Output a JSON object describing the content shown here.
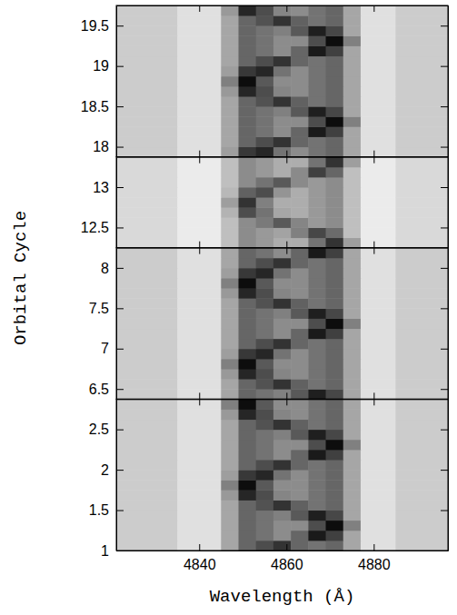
{
  "chart_data": {
    "type": "heatmap",
    "xlabel": "Wavelength (Å)",
    "ylabel": "Orbital Cycle",
    "xlim": [
      4821,
      4897
    ],
    "xticks": [
      4840,
      4860,
      4880
    ],
    "zlim": [
      0,
      100
    ],
    "x_edges": [
      4821,
      4835,
      4845,
      4849,
      4853,
      4857,
      4861,
      4865,
      4869,
      4873,
      4877,
      4885,
      4897
    ],
    "panels": [
      {
        "ylim": [
          17.875,
          19.75
        ],
        "yticks": [
          18,
          18.5,
          19,
          19.5
        ],
        "y_edges": [
          17.875,
          18,
          18.125,
          18.25,
          18.375,
          18.5,
          18.625,
          18.75,
          18.875,
          19,
          19.125,
          19.25,
          19.375,
          19.5,
          19.625,
          19.75
        ],
        "cells": [
          [
            20,
            12,
            38,
            78,
            85,
            55,
            45,
            55,
            60,
            35,
            12,
            20
          ],
          [
            20,
            12,
            35,
            60,
            70,
            80,
            60,
            55,
            60,
            35,
            12,
            20
          ],
          [
            20,
            12,
            35,
            60,
            55,
            45,
            60,
            90,
            75,
            35,
            12,
            20
          ],
          [
            20,
            12,
            35,
            60,
            55,
            45,
            45,
            70,
            95,
            50,
            12,
            20
          ],
          [
            20,
            12,
            35,
            60,
            55,
            50,
            65,
            88,
            72,
            35,
            12,
            20
          ],
          [
            20,
            12,
            35,
            60,
            68,
            80,
            62,
            55,
            60,
            35,
            12,
            20
          ],
          [
            20,
            12,
            40,
            85,
            70,
            48,
            45,
            55,
            60,
            35,
            12,
            20
          ],
          [
            20,
            12,
            50,
            95,
            65,
            45,
            45,
            55,
            60,
            35,
            12,
            20
          ],
          [
            20,
            12,
            38,
            78,
            85,
            55,
            45,
            55,
            60,
            35,
            12,
            20
          ],
          [
            20,
            12,
            35,
            60,
            70,
            80,
            60,
            55,
            60,
            35,
            12,
            20
          ],
          [
            20,
            12,
            35,
            60,
            55,
            45,
            60,
            90,
            75,
            35,
            12,
            20
          ],
          [
            20,
            12,
            35,
            60,
            55,
            45,
            45,
            70,
            95,
            50,
            12,
            20
          ],
          [
            20,
            12,
            35,
            60,
            55,
            50,
            65,
            88,
            72,
            35,
            12,
            20
          ],
          [
            20,
            12,
            35,
            60,
            68,
            80,
            62,
            55,
            60,
            35,
            12,
            20
          ],
          [
            20,
            12,
            40,
            85,
            70,
            48,
            45,
            55,
            60,
            35,
            12,
            20
          ]
        ]
      },
      {
        "ylim": [
          12.25,
          13.375
        ],
        "yticks": [
          12.5,
          13
        ],
        "y_edges": [
          12.25,
          12.375,
          12.5,
          12.625,
          12.75,
          12.875,
          13,
          13.125,
          13.25,
          13.375
        ],
        "cells": [
          [
            15,
            8,
            25,
            45,
            40,
            32,
            32,
            55,
            80,
            38,
            8,
            15
          ],
          [
            15,
            8,
            25,
            45,
            40,
            36,
            50,
            72,
            58,
            25,
            8,
            15
          ],
          [
            15,
            8,
            25,
            45,
            52,
            65,
            48,
            40,
            45,
            25,
            8,
            15
          ],
          [
            15,
            8,
            30,
            70,
            55,
            35,
            32,
            40,
            45,
            25,
            8,
            15
          ],
          [
            15,
            8,
            38,
            80,
            50,
            32,
            32,
            40,
            45,
            25,
            8,
            15
          ],
          [
            15,
            8,
            28,
            62,
            70,
            42,
            32,
            40,
            45,
            25,
            8,
            15
          ],
          [
            15,
            8,
            25,
            45,
            55,
            65,
            46,
            40,
            45,
            25,
            8,
            15
          ],
          [
            15,
            8,
            25,
            45,
            40,
            32,
            46,
            75,
            60,
            25,
            8,
            15
          ],
          [
            15,
            8,
            25,
            45,
            40,
            32,
            32,
            55,
            80,
            38,
            8,
            15
          ]
        ]
      },
      {
        "ylim": [
          6.375,
          8.25
        ],
        "yticks": [
          6.5,
          7,
          7.5,
          8
        ],
        "y_edges": [
          6.375,
          6.5,
          6.625,
          6.75,
          6.875,
          7,
          7.125,
          7.25,
          7.375,
          7.5,
          7.625,
          7.75,
          7.875,
          8,
          8.125,
          8.25
        ],
        "cells": [
          [
            20,
            12,
            35,
            60,
            55,
            50,
            65,
            88,
            72,
            35,
            12,
            20
          ],
          [
            20,
            12,
            35,
            60,
            68,
            80,
            62,
            55,
            60,
            35,
            12,
            20
          ],
          [
            20,
            12,
            40,
            85,
            70,
            48,
            45,
            55,
            60,
            35,
            12,
            20
          ],
          [
            20,
            12,
            50,
            95,
            65,
            45,
            45,
            55,
            60,
            35,
            12,
            20
          ],
          [
            20,
            12,
            38,
            78,
            85,
            55,
            45,
            55,
            60,
            35,
            12,
            20
          ],
          [
            20,
            12,
            35,
            60,
            70,
            80,
            60,
            55,
            60,
            35,
            12,
            20
          ],
          [
            20,
            12,
            35,
            60,
            55,
            45,
            60,
            90,
            75,
            35,
            12,
            20
          ],
          [
            20,
            12,
            35,
            60,
            55,
            45,
            45,
            70,
            95,
            50,
            12,
            20
          ],
          [
            20,
            12,
            35,
            60,
            55,
            50,
            65,
            88,
            72,
            35,
            12,
            20
          ],
          [
            20,
            12,
            35,
            60,
            68,
            80,
            62,
            55,
            60,
            35,
            12,
            20
          ],
          [
            20,
            12,
            40,
            85,
            70,
            48,
            45,
            55,
            60,
            35,
            12,
            20
          ],
          [
            20,
            12,
            50,
            95,
            65,
            45,
            45,
            55,
            60,
            35,
            12,
            20
          ],
          [
            20,
            12,
            38,
            78,
            85,
            55,
            45,
            55,
            60,
            35,
            12,
            20
          ],
          [
            20,
            12,
            35,
            60,
            70,
            80,
            60,
            55,
            60,
            35,
            12,
            20
          ],
          [
            20,
            12,
            35,
            60,
            55,
            45,
            60,
            90,
            75,
            35,
            12,
            20
          ]
        ]
      },
      {
        "ylim": [
          1,
          2.875
        ],
        "yticks": [
          1,
          1.5,
          2,
          2.5
        ],
        "y_edges": [
          1,
          1.125,
          1.25,
          1.375,
          1.5,
          1.625,
          1.75,
          1.875,
          2,
          2.125,
          2.25,
          2.375,
          2.5,
          2.625,
          2.75,
          2.875
        ],
        "cells": [
          [
            20,
            12,
            35,
            60,
            70,
            80,
            60,
            55,
            60,
            35,
            12,
            20
          ],
          [
            20,
            12,
            35,
            60,
            55,
            45,
            60,
            90,
            75,
            35,
            12,
            20
          ],
          [
            20,
            12,
            35,
            60,
            55,
            45,
            45,
            70,
            95,
            50,
            12,
            20
          ],
          [
            20,
            12,
            35,
            60,
            55,
            50,
            65,
            88,
            72,
            35,
            12,
            20
          ],
          [
            20,
            12,
            35,
            60,
            68,
            80,
            62,
            55,
            60,
            35,
            12,
            20
          ],
          [
            20,
            12,
            40,
            85,
            70,
            48,
            45,
            55,
            60,
            35,
            12,
            20
          ],
          [
            20,
            12,
            50,
            95,
            65,
            45,
            45,
            55,
            60,
            35,
            12,
            20
          ],
          [
            20,
            12,
            38,
            78,
            85,
            55,
            45,
            55,
            60,
            35,
            12,
            20
          ],
          [
            20,
            12,
            35,
            60,
            70,
            80,
            60,
            55,
            60,
            35,
            12,
            20
          ],
          [
            20,
            12,
            35,
            60,
            55,
            45,
            60,
            90,
            75,
            35,
            12,
            20
          ],
          [
            20,
            12,
            35,
            60,
            55,
            45,
            45,
            70,
            95,
            50,
            12,
            20
          ],
          [
            20,
            12,
            35,
            60,
            55,
            50,
            65,
            88,
            72,
            35,
            12,
            20
          ],
          [
            20,
            12,
            35,
            60,
            68,
            80,
            62,
            55,
            60,
            35,
            12,
            20
          ],
          [
            20,
            12,
            40,
            85,
            70,
            48,
            45,
            55,
            60,
            35,
            12,
            20
          ],
          [
            20,
            12,
            50,
            95,
            65,
            45,
            45,
            55,
            60,
            35,
            12,
            20
          ]
        ]
      }
    ]
  }
}
